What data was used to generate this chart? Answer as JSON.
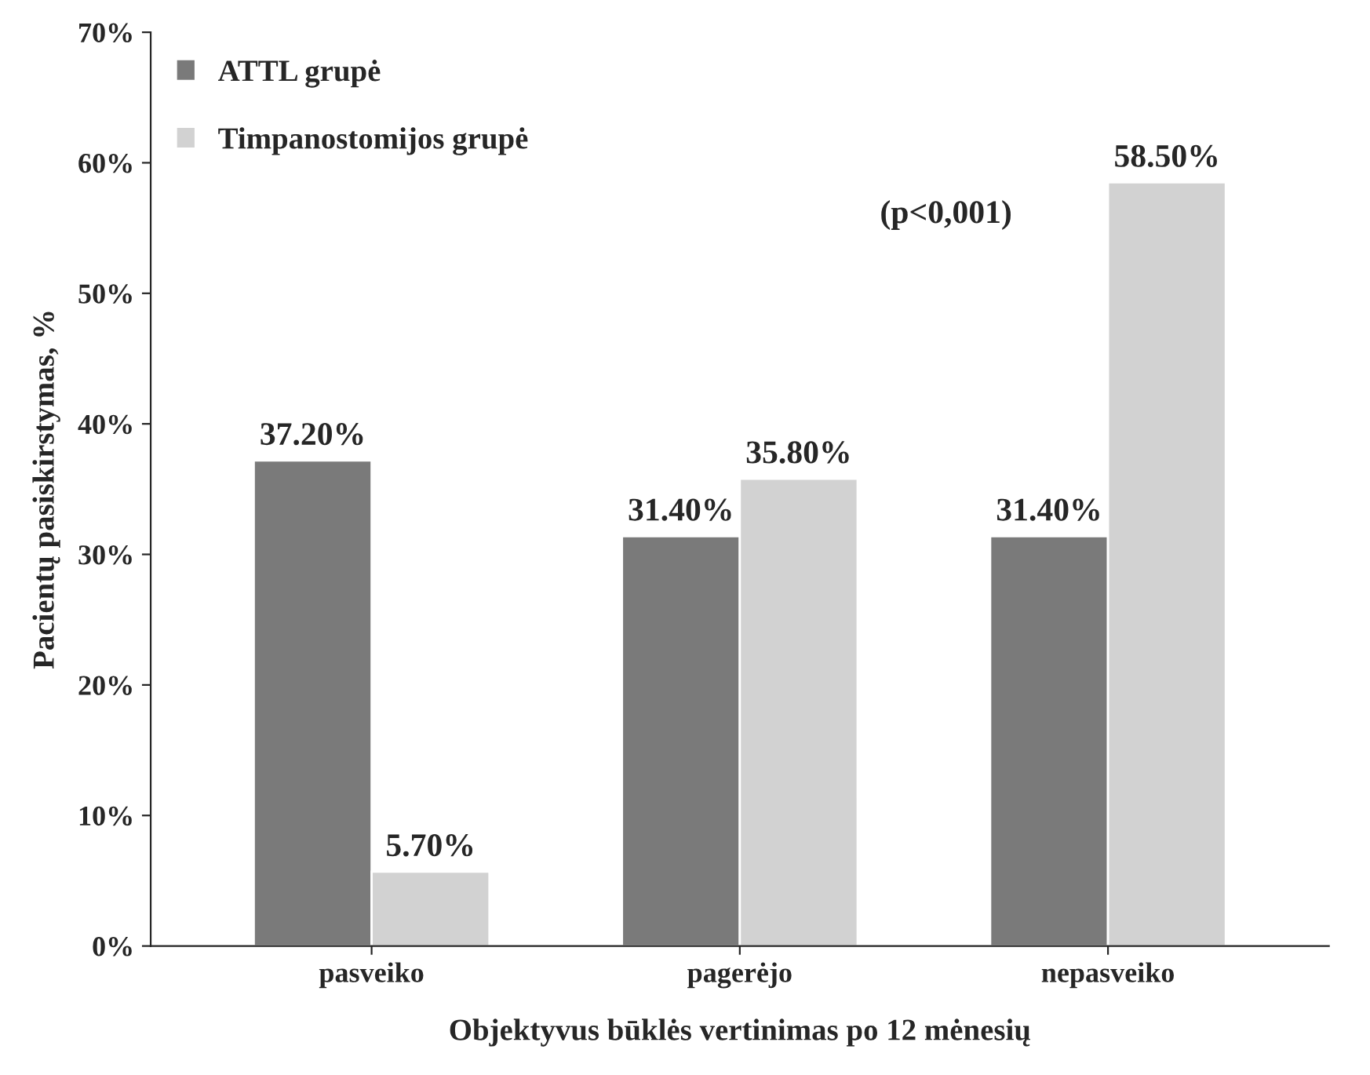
{
  "chart_data": {
    "type": "bar",
    "xlabel": "Objektyvus būklės vertinimas po 12 mėnesių",
    "ylabel": "Pacientų pasiskirstymas, %",
    "categories": [
      "pasveiko",
      "pagerėjo",
      "nepasveiko"
    ],
    "series": [
      {
        "name": "ATTL grupė",
        "color": "#7a7a7a",
        "values": [
          37.2,
          31.4,
          31.4
        ],
        "value_labels": [
          "37.20%",
          "31.40%",
          "31.40%"
        ]
      },
      {
        "name": "Timpanostomijos grupė",
        "color": "#d2d2d2",
        "values": [
          5.7,
          35.8,
          58.5
        ],
        "value_labels": [
          "5.70%",
          "35.80%",
          "58.50%"
        ]
      }
    ],
    "ylim": [
      0,
      70
    ],
    "yticks": [
      {
        "value": 0,
        "label": "0%"
      },
      {
        "value": 10,
        "label": "10%"
      },
      {
        "value": 20,
        "label": "20%"
      },
      {
        "value": 30,
        "label": "30%"
      },
      {
        "value": 40,
        "label": "40%"
      },
      {
        "value": 50,
        "label": "50%"
      },
      {
        "value": 60,
        "label": "60%"
      },
      {
        "value": 70,
        "label": "70%"
      }
    ],
    "annotations": [
      "(p<0,001)"
    ],
    "grid": false,
    "legend": "top left"
  }
}
